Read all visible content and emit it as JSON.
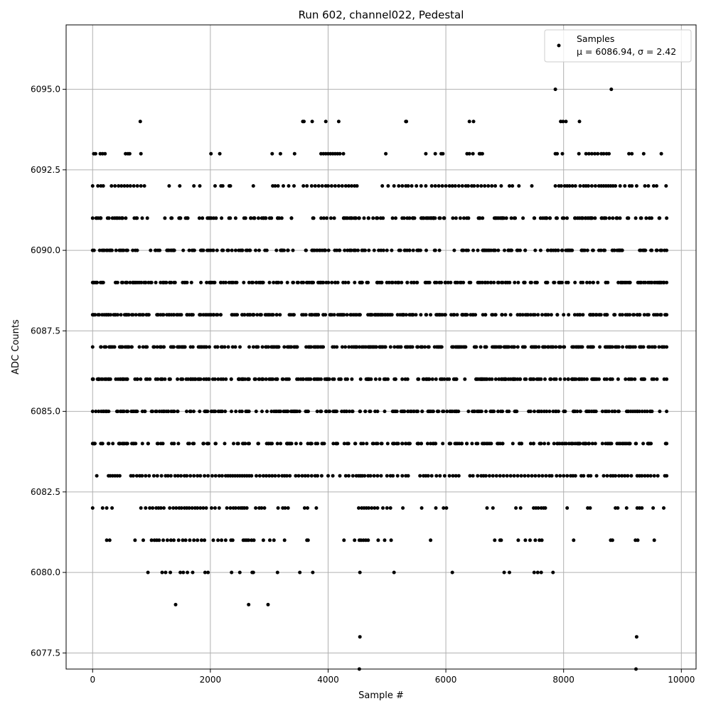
{
  "chart_data": {
    "type": "scatter",
    "title": "Run 602, channel022, Pedestal",
    "xlabel": "Sample #",
    "ylabel": "ADC Counts",
    "xlim": [
      -450,
      10250
    ],
    "ylim": [
      6077.0,
      6097.0
    ],
    "x_ticks": [
      0,
      2000,
      4000,
      6000,
      8000,
      10000
    ],
    "x_tick_labels": [
      "0",
      "2000",
      "4000",
      "6000",
      "8000",
      "10000"
    ],
    "y_ticks": [
      6077.5,
      6080.0,
      6082.5,
      6085.0,
      6087.5,
      6090.0,
      6092.5,
      6095.0
    ],
    "y_tick_labels": [
      "6077.5",
      "6080.0",
      "6082.5",
      "6085.0",
      "6087.5",
      "6090.0",
      "6092.5",
      "6095.0"
    ],
    "grid": true,
    "legend_position": "top-right",
    "marker_color": "#000000",
    "series": [
      {
        "name": "Samples",
        "legend_stats": "μ = 6086.94, σ = 2.42",
        "levels": [
          {
            "y": 6077,
            "x": [
              4530,
              9230
            ]
          },
          {
            "y": 6078,
            "x": [
              4540,
              9240
            ]
          },
          {
            "y": 6079,
            "x": [
              1410,
              2650,
              2980
            ]
          },
          {
            "y": 6080,
            "x": [
              940,
              1180,
              1240,
              1320,
              1490,
              1540,
              1610,
              1700,
              1910,
              1960,
              2360,
              2500,
              2710,
              2730,
              3140,
              3520,
              3740,
              4540,
              5120,
              6110,
              6990,
              7080,
              7500,
              7560,
              7620,
              7820
            ]
          },
          {
            "y": 6081,
            "x": [
              240,
              290,
              720,
              860,
              1000,
              1050,
              1090,
              1130,
              1200,
              1270,
              1330,
              1380,
              1460,
              1530,
              1580,
              1650,
              1720,
              1780,
              1850,
              1900,
              2050,
              2130,
              2190,
              2260,
              2350,
              2380,
              2560,
              2590,
              2620,
              2650,
              2700,
              2740,
              2900,
              3010,
              3080,
              3260,
              3640,
              3660,
              4270,
              4450,
              4530,
              4560,
              4600,
              4640,
              4680,
              4850,
              4960,
              5070,
              5740,
              6830,
              6920,
              6940,
              7230,
              7350,
              7430,
              7520,
              7590,
              7630,
              8170,
              8800,
              8830,
              9220,
              9260,
              9540
            ]
          },
          {
            "y": 6082,
            "x": [
              0,
              170,
              240,
              330,
              820,
              900,
              970,
              1020,
              1080,
              1120,
              1160,
              1210,
              1310,
              1370,
              1420,
              1470,
              1510,
              1560,
              1600,
              1640,
              1690,
              1740,
              1780,
              1830,
              1880,
              1930,
              2020,
              2080,
              2150,
              2280,
              2340,
              2390,
              2430,
              2480,
              2520,
              2550,
              2580,
              2620,
              2770,
              2830,
              2870,
              2920,
              3150,
              3230,
              3270,
              3320,
              3600,
              3650,
              3800,
              4520,
              4570,
              4610,
              4650,
              4690,
              4740,
              4790,
              4840,
              4930,
              5000,
              5060,
              5270,
              5590,
              5830,
              5960,
              6010,
              6700,
              6800,
              7190,
              7270,
              7490,
              7530,
              7570,
              7620,
              7660,
              7690,
              8060,
              8410,
              8450,
              8880,
              8920,
              9070,
              9250,
              9290,
              9330,
              9520,
              9700
            ]
          },
          {
            "y": 6083,
            "x": [
              70,
              270,
              300,
              340,
              380,
              420,
              460,
              650,
              690,
              750,
              800,
              840,
              900,
              960,
              1040,
              1100,
              1170,
              1240,
              1280,
              1330,
              1400,
              1450,
              1500,
              1560,
              1600,
              1660,
              1720,
              1780,
              1830,
              1900,
              1960,
              2030,
              2090,
              2150,
              2200,
              2260,
              2300,
              2340,
              2380,
              2420,
              2460,
              2500,
              2540,
              2580,
              2620,
              2660,
              2700,
              2780,
              2840,
              2900,
              2950,
              3000,
              3050,
              3100,
              3160,
              3220,
              3260,
              3300,
              3350,
              3450,
              3500,
              3560,
              3610,
              3660,
              3720,
              3780,
              3820,
              3890,
              4000,
              4080,
              4200,
              4300,
              4350,
              4420,
              4480,
              4520,
              4550,
              4580,
              4620,
              4680,
              4720,
              4780,
              4840,
              4900,
              5000,
              5060,
              5100,
              5180,
              5260,
              5320,
              5360,
              5560,
              5620,
              5660,
              5700,
              5760,
              5840,
              5900,
              5980,
              6060,
              6120,
              6170,
              6220,
              6410,
              6460,
              6540,
              6600,
              6640,
              6680,
              6740,
              6800,
              6860,
              6920,
              6980,
              7040,
              7100,
              7160,
              7220,
              7280,
              7340,
              7400,
              7460,
              7520,
              7580,
              7640,
              7700,
              7760,
              7800,
              7880,
              7940,
              8000,
              8060,
              8120,
              8160,
              8200,
              8300,
              8340,
              8420,
              8460,
              8560,
              8680,
              8740,
              8800,
              8840,
              8880,
              8940,
              8990,
              9040,
              9090,
              9150,
              9250,
              9290,
              9330,
              9380,
              9430,
              9480,
              9540,
              9600,
              9720,
              9750
            ]
          },
          {
            "y": 6084,
            "x": [
              0,
              30
            ],
            "x_range": [
              0,
              9750
            ],
            "n": 235
          },
          {
            "y": 6085,
            "x": [
              0
            ],
            "x_range": [
              0,
              9750
            ],
            "n": 265
          },
          {
            "y": 6086,
            "x": [
              0
            ],
            "x_range": [
              0,
              9750
            ],
            "n": 290
          },
          {
            "y": 6087,
            "x": [
              0
            ],
            "x_range": [
              0,
              9750
            ],
            "n": 310
          },
          {
            "y": 6088,
            "x": [
              0
            ],
            "x_range": [
              0,
              9750
            ],
            "n": 300
          },
          {
            "y": 6089,
            "x": [
              0
            ],
            "x_range": [
              0,
              9750
            ],
            "n": 270
          },
          {
            "y": 6090,
            "x": [
              0
            ],
            "x_range": [
              0,
              9750
            ],
            "n": 230
          },
          {
            "y": 6091,
            "x": [
              0
            ],
            "x_range": [
              0,
              9750
            ],
            "n": 200
          },
          {
            "y": 6092,
            "x": [
              0,
              90,
              140,
              180,
              320,
              380,
              440,
              490,
              540,
              590,
              640,
              700,
              760,
              820,
              880,
              1300,
              1480,
              1720,
              1820,
              2080,
              2180,
              2210,
              2320,
              2340,
              2730,
              3060,
              3100,
              3150,
              3240,
              3330,
              3420,
              3580,
              3640,
              3720,
              3780,
              3840,
              3900,
              3960,
              4000,
              4060,
              4120,
              4180,
              4240,
              4300,
              4350,
              4400,
              4450,
              4490,
              4920,
              5020,
              5120,
              5200,
              5260,
              5320,
              5360,
              5420,
              5500,
              5580,
              5660,
              5760,
              5820,
              5880,
              5940,
              6000,
              6060,
              6110,
              6160,
              6220,
              6280,
              6340,
              6380,
              6440,
              6480,
              6540,
              6600,
              6660,
              6720,
              6780,
              6840,
              6940,
              7080,
              7130,
              7240,
              7460,
              7860,
              7920,
              7960,
              8020,
              8060,
              8100,
              8150,
              8200,
              8280,
              8340,
              8380,
              8420,
              8480,
              8540,
              8600,
              8640,
              8680,
              8720,
              8760,
              8800,
              8840,
              8880,
              8960,
              9040,
              9120,
              9160,
              9240,
              9380,
              9440,
              9530,
              9580,
              9740
            ]
          },
          {
            "y": 6093,
            "x": [
              20,
              50,
              130,
              170,
              210,
              560,
              600,
              630,
              820,
              2010,
              2160,
              3050,
              3190,
              3430,
              3880,
              3920,
              3960,
              4000,
              4040,
              4080,
              4120,
              4160,
              4200,
              4260,
              4980,
              5660,
              5820,
              5920,
              5950,
              6360,
              6400,
              6460,
              6570,
              6590,
              6620,
              7860,
              7890,
              7980,
              8260,
              8380,
              8430,
              8480,
              8530,
              8580,
              8640,
              8680,
              8730,
              8770,
              9110,
              9160,
              9360,
              9660
            ]
          },
          {
            "y": 6094,
            "x": [
              810,
              3570,
              3590,
              3730,
              3960,
              4180,
              5320,
              5330,
              6400,
              6470,
              7950,
              7990,
              8040,
              8270
            ]
          },
          {
            "y": 6095,
            "x": [
              7860,
              8810
            ]
          }
        ]
      }
    ]
  }
}
